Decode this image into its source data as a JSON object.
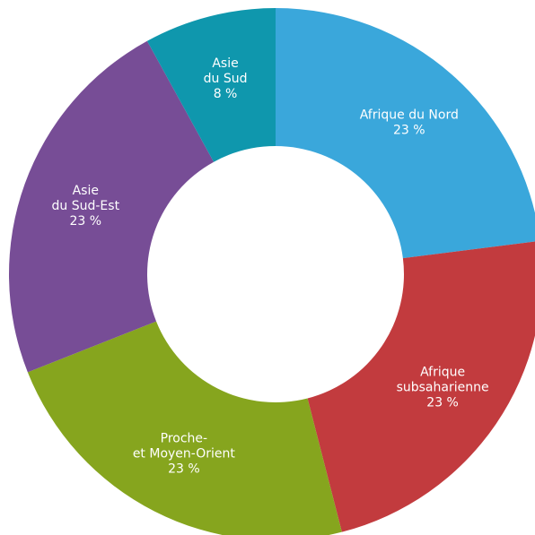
{
  "chart_data": {
    "type": "donut",
    "categories": [
      "Afrique du Nord",
      "Afrique\nsubsaharienne",
      "Proche-\net Moyen-Orient",
      "Asie\ndu Sud-Est",
      "Asie\ndu Sud"
    ],
    "values": [
      23,
      23,
      23,
      23,
      8
    ],
    "value_labels": [
      "23 %",
      "23 %",
      "23 %",
      "23 %",
      "8 %"
    ],
    "colors": [
      "#3aa7db",
      "#c23b3e",
      "#86a51e",
      "#774d96",
      "#0f97ad"
    ]
  }
}
